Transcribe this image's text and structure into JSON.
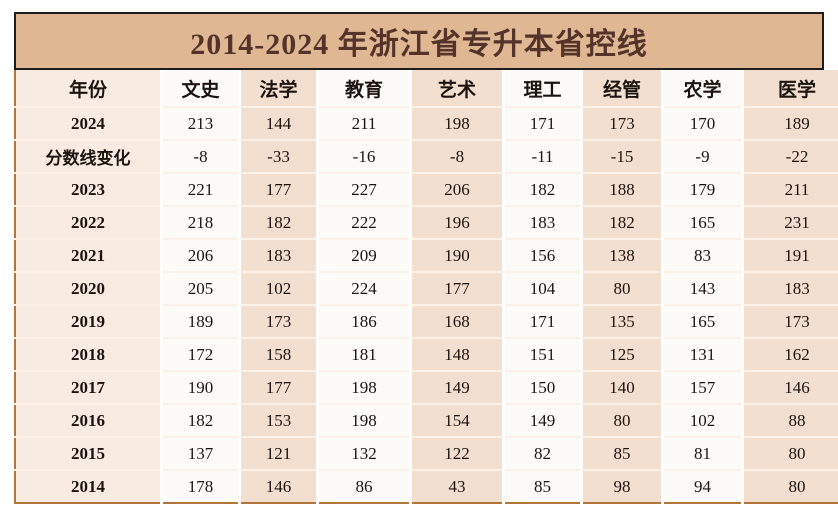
{
  "title": "2014-2024 年浙江省专升本省控线",
  "chart_data": {
    "type": "table",
    "title": "2014-2024 年浙江省专升本省控线",
    "columns": [
      "年份",
      "文史",
      "法学",
      "教育",
      "艺术",
      "理工",
      "经管",
      "农学",
      "医学"
    ],
    "rows": [
      [
        "2024",
        "213",
        "144",
        "211",
        "198",
        "171",
        "173",
        "170",
        "189"
      ],
      [
        "分数线变化",
        "-8",
        "-33",
        "-16",
        "-8",
        "-11",
        "-15",
        "-9",
        "-22"
      ],
      [
        "2023",
        "221",
        "177",
        "227",
        "206",
        "182",
        "188",
        "179",
        "211"
      ],
      [
        "2022",
        "218",
        "182",
        "222",
        "196",
        "183",
        "182",
        "165",
        "231"
      ],
      [
        "2021",
        "206",
        "183",
        "209",
        "190",
        "156",
        "138",
        "83",
        "191"
      ],
      [
        "2020",
        "205",
        "102",
        "224",
        "177",
        "104",
        "80",
        "143",
        "183"
      ],
      [
        "2019",
        "189",
        "173",
        "186",
        "168",
        "171",
        "135",
        "165",
        "173"
      ],
      [
        "2018",
        "172",
        "158",
        "181",
        "148",
        "151",
        "125",
        "131",
        "162"
      ],
      [
        "2017",
        "190",
        "177",
        "198",
        "149",
        "150",
        "140",
        "157",
        "146"
      ],
      [
        "2016",
        "182",
        "153",
        "198",
        "154",
        "149",
        "80",
        "102",
        "88"
      ],
      [
        "2015",
        "137",
        "121",
        "132",
        "122",
        "82",
        "85",
        "81",
        "80"
      ],
      [
        "2014",
        "178",
        "146",
        "86",
        "43",
        "85",
        "98",
        "94",
        "80"
      ]
    ]
  },
  "colors": {
    "title_bg": "#dfb893",
    "title_border": "#1d1d1d",
    "title_text": "#54332b",
    "outer_border": "#b0763c",
    "text": "#1c1410",
    "col_year_bg": "#f8ebe1",
    "col_light_bg": "#fdfbf8",
    "col_tan_bg": "#f2dfd0"
  }
}
